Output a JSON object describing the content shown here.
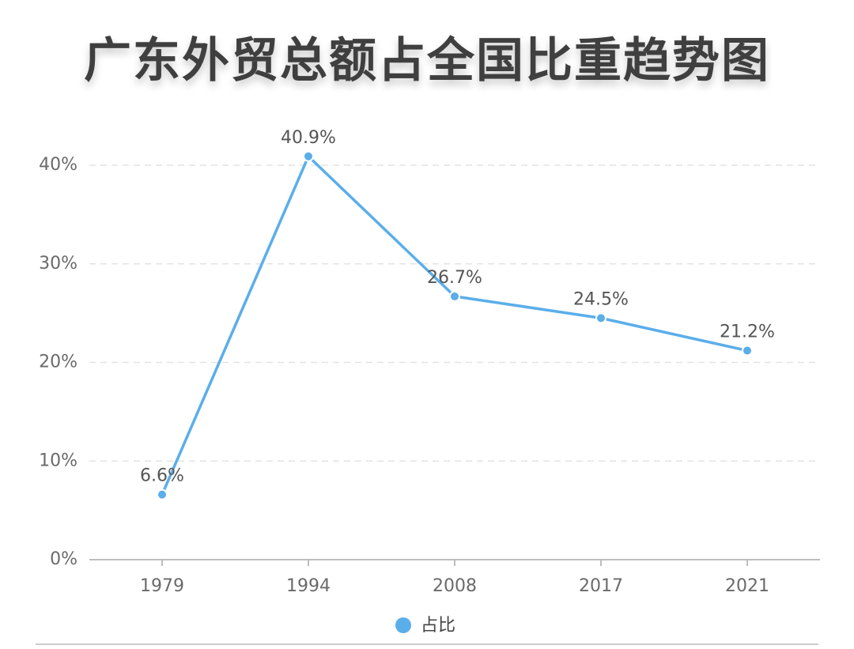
{
  "chart_data": {
    "type": "line",
    "title": "广东外贸总额占全国比重趋势图",
    "categories": [
      "1979",
      "1994",
      "2008",
      "2017",
      "2021"
    ],
    "series": [
      {
        "name": "占比",
        "values": [
          6.6,
          40.9,
          26.7,
          24.5,
          21.2
        ],
        "color": "#5aaeea"
      }
    ],
    "data_labels": [
      "6.6%",
      "40.9%",
      "26.7%",
      "24.5%",
      "21.2%"
    ],
    "y_ticks": [
      "0%",
      "10%",
      "20%",
      "30%",
      "40%"
    ],
    "ylim": [
      0,
      40
    ],
    "grid": true,
    "legend": "bottom-center"
  }
}
